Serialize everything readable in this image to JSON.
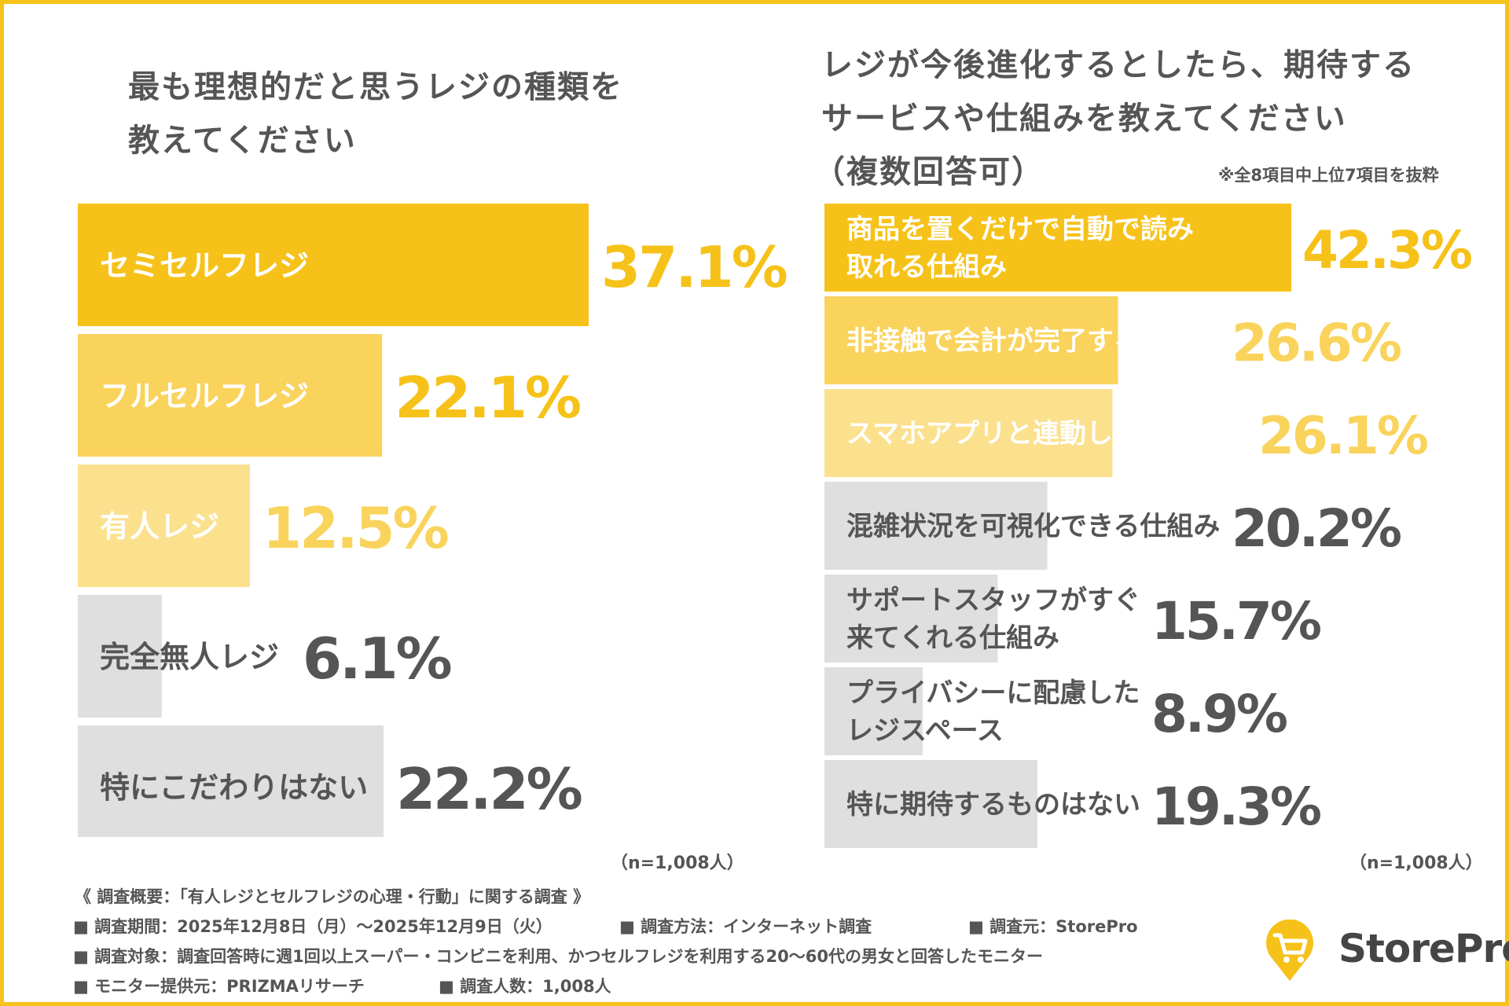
{
  "left_panel": {
    "title_lines": [
      "最も理想的だと思うレジの種類を",
      "教えてください"
    ],
    "sample_note": "（n=1,008人）"
  },
  "right_panel": {
    "title_lines": [
      "レジが今後進化するとしたら、期待する",
      "サービスや仕組みを教えてください",
      "（複数回答可）"
    ],
    "excerpt_note": "※全8項目中上位7項目を抜粋",
    "sample_note": "（n=1,008人）"
  },
  "colors": {
    "frame": "#F6C21A",
    "bar_dark": "#F6C21A",
    "bar_mid": "#F9D35C",
    "bar_light": "#FBE08E",
    "bar_gray": "#DFDFDF",
    "text_gray": "#555555"
  },
  "chart_data": [
    {
      "type": "bar",
      "orientation": "horizontal",
      "title": "最も理想的だと思うレジの種類を教えてください",
      "categories": [
        "セミセルフレジ",
        "フルセルフレジ",
        "有人レジ",
        "完全無人レジ",
        "特にこだわりはない"
      ],
      "values": [
        37.1,
        22.1,
        12.5,
        6.1,
        22.2
      ],
      "value_labels": [
        "37.1%",
        "22.1%",
        "12.5%",
        "6.1%",
        "22.2%"
      ],
      "bar_colors": [
        "#F6C21A",
        "#F9D35C",
        "#FBE08E",
        "#DFDFDF",
        "#DFDFDF"
      ],
      "value_colors": [
        "#F6C21A",
        "#F6C21A",
        "#F9D35C",
        "#555555",
        "#555555"
      ],
      "label_colors": [
        "#ffffff",
        "#ffffff",
        "#ffffff",
        "#555555",
        "#555555"
      ],
      "unit": "%",
      "n": "n=1,008人"
    },
    {
      "type": "bar",
      "orientation": "horizontal",
      "title": "レジが今後進化するとしたら、期待するサービスや仕組みを教えてください（複数回答可）",
      "categories": [
        "商品を置くだけで自動で読み取れる仕組み",
        "非接触で会計が完了する仕組み",
        "スマホアプリと連動した自動決済",
        "混雑状況を可視化できる仕組み",
        "サポートスタッフがすぐ来てくれる仕組み",
        "プライバシーに配慮したレジスペース",
        "特に期待するものはない"
      ],
      "category_lines": [
        [
          "商品を置くだけで自動で読み",
          "取れる仕組み"
        ],
        [
          "非接触で会計が完了する仕組み"
        ],
        [
          "スマホアプリと連動した自動決済"
        ],
        [
          "混雑状況を可視化できる仕組み"
        ],
        [
          "サポートスタッフがすぐ",
          "来てくれる仕組み"
        ],
        [
          "プライバシーに配慮した",
          "レジスペース"
        ],
        [
          "特に期待するものはない"
        ]
      ],
      "values": [
        42.3,
        26.6,
        26.1,
        20.2,
        15.7,
        8.9,
        19.3
      ],
      "value_labels": [
        "42.3%",
        "26.6%",
        "26.1%",
        "20.2%",
        "15.7%",
        "8.9%",
        "19.3%"
      ],
      "bar_colors": [
        "#F6C21A",
        "#F9D35C",
        "#FBE08E",
        "#DFDFDF",
        "#DFDFDF",
        "#DFDFDF",
        "#DFDFDF"
      ],
      "value_colors": [
        "#F6C21A",
        "#F9D35C",
        "#F9D35C",
        "#555555",
        "#555555",
        "#555555",
        "#555555"
      ],
      "label_colors": [
        "#ffffff",
        "#ffffff",
        "#ffffff",
        "#555555",
        "#555555",
        "#555555",
        "#555555"
      ],
      "unit": "%",
      "n": "n=1,008人"
    }
  ],
  "footer": {
    "heading": "《 調査概要：「有人レジとセルフレジの心理・行動」に関する調査 》",
    "period": "■ 調査期間：2025年12月8日（月）〜2025年12月9日（火）",
    "method": "■ 調査方法：インターネット調査",
    "source": "■ 調査元：StorePro",
    "target": "■ 調査対象：調査回答時に週1回以上スーパー・コンビニを利用、かつセルフレジを利用する20〜60代の男女と回答したモニター",
    "provider": "■ モニター提供元：PRIZMAリサーチ",
    "count": "■ 調査人数：1,008人"
  },
  "logo": {
    "text": "StorePro",
    "icon": "shopping-cart-pin-icon"
  }
}
